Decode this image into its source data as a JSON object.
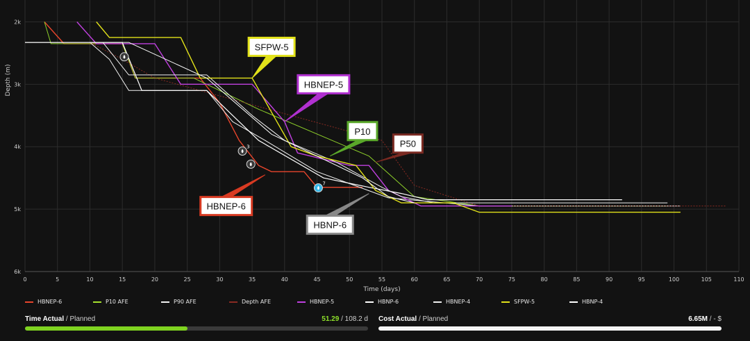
{
  "chart_data": {
    "type": "line",
    "xlabel": "Time (days)",
    "ylabel": "Depth (m)",
    "xlim": [
      0,
      110
    ],
    "ylim": [
      2000,
      6000
    ],
    "xticks": [
      0,
      5,
      10,
      15,
      20,
      25,
      30,
      35,
      40,
      45,
      50,
      55,
      60,
      65,
      70,
      75,
      80,
      85,
      90,
      95,
      100,
      105,
      110
    ],
    "yticks": [
      2000,
      3000,
      4000,
      5000,
      6000
    ],
    "ytick_labels": [
      "2k",
      "3k",
      "4k",
      "5k",
      "6k"
    ],
    "grid": true,
    "legend_position": "bottom",
    "series": [
      {
        "name": "HBNEP-6",
        "color": "#e8452c",
        "width": 1.4,
        "points": [
          [
            3,
            2000
          ],
          [
            6,
            2350
          ],
          [
            15,
            2350
          ],
          [
            17,
            2900
          ],
          [
            27,
            2900
          ],
          [
            30,
            3300
          ],
          [
            33,
            3900
          ],
          [
            36,
            4300
          ],
          [
            38,
            4400
          ],
          [
            43,
            4400
          ],
          [
            45,
            4650
          ],
          [
            52,
            4650
          ]
        ]
      },
      {
        "name": "P10 AFE",
        "color": "#8fd12a",
        "width": 1.0,
        "points": [
          [
            3,
            2000
          ],
          [
            4,
            2350
          ],
          [
            15,
            2350
          ],
          [
            17,
            2900
          ],
          [
            26,
            2900
          ],
          [
            36,
            3400
          ],
          [
            53,
            4150
          ],
          [
            60,
            4800
          ],
          [
            70,
            4950
          ],
          [
            99,
            4950
          ]
        ]
      },
      {
        "name": "P90 AFE",
        "color": "#f2f2f2",
        "width": 1.0,
        "points": [
          [
            0,
            2330
          ],
          [
            10,
            2330
          ],
          [
            13,
            2600
          ],
          [
            16,
            3100
          ],
          [
            28,
            3100
          ],
          [
            32,
            3600
          ],
          [
            37,
            3900
          ],
          [
            45,
            4400
          ],
          [
            56,
            4820
          ],
          [
            70,
            4950
          ],
          [
            101,
            4950
          ]
        ]
      },
      {
        "name": "Depth AFE",
        "color": "#8a2b22",
        "width": 1.0,
        "points": [
          [
            10,
            2330
          ],
          [
            15,
            2600
          ],
          [
            20,
            2900
          ],
          [
            55,
            3900
          ],
          [
            60,
            4620
          ],
          [
            70,
            4950
          ],
          [
            108,
            4950
          ]
        ]
      },
      {
        "name": "HBNEP-5",
        "color": "#c040e0",
        "width": 1.4,
        "points": [
          [
            8,
            2000
          ],
          [
            11,
            2350
          ],
          [
            20,
            2350
          ],
          [
            24,
            3000
          ],
          [
            35,
            3000
          ],
          [
            40,
            3600
          ],
          [
            42,
            4100
          ],
          [
            50,
            4300
          ],
          [
            53,
            4300
          ],
          [
            56,
            4700
          ],
          [
            61,
            4950
          ],
          [
            75,
            4950
          ]
        ]
      },
      {
        "name": "HBNP-6",
        "color": "#ffffff",
        "width": 1.2,
        "points": [
          [
            10,
            2330
          ],
          [
            15,
            2330
          ],
          [
            18,
            3100
          ],
          [
            28,
            3100
          ],
          [
            32,
            3500
          ],
          [
            36,
            3900
          ],
          [
            46,
            4500
          ],
          [
            53,
            4650
          ],
          [
            58,
            4750
          ],
          [
            62,
            4850
          ],
          [
            92,
            4850
          ]
        ]
      },
      {
        "name": "HBNEP-4",
        "color": "#f0f0f0",
        "width": 1.0,
        "points": [
          [
            0,
            2330
          ],
          [
            12,
            2330
          ],
          [
            16,
            2850
          ],
          [
            28,
            2850
          ],
          [
            35,
            3500
          ],
          [
            40,
            3900
          ],
          [
            48,
            4250
          ],
          [
            55,
            4650
          ],
          [
            58,
            4800
          ],
          [
            63,
            4900
          ],
          [
            99,
            4900
          ]
        ]
      },
      {
        "name": "SFPW-5",
        "color": "#e2e21a",
        "width": 1.4,
        "points": [
          [
            11,
            2000
          ],
          [
            13,
            2250
          ],
          [
            24,
            2250
          ],
          [
            27,
            2900
          ],
          [
            35,
            2900
          ],
          [
            41,
            4000
          ],
          [
            45,
            4150
          ],
          [
            51,
            4300
          ],
          [
            54,
            4700
          ],
          [
            58,
            4900
          ],
          [
            66,
            4900
          ],
          [
            70,
            5050
          ],
          [
            101,
            5050
          ]
        ]
      },
      {
        "name": "HBNP-4",
        "color": "#ffffff",
        "width": 1.0,
        "points": [
          [
            0,
            2330
          ],
          [
            16,
            2330
          ],
          [
            28,
            2900
          ],
          [
            38,
            3800
          ],
          [
            52,
            4500
          ],
          [
            56,
            4800
          ],
          [
            60,
            4900
          ]
        ]
      }
    ],
    "annotations": [
      {
        "text": "SFPW-5",
        "anchor": [
          35,
          2900
        ],
        "box": [
          38,
          2400
        ],
        "color": "#e2e21a"
      },
      {
        "text": "HBNEP-5",
        "anchor": [
          40,
          3600
        ],
        "box": [
          46,
          3000
        ],
        "color": "#b030d0"
      },
      {
        "text": "P10",
        "anchor": [
          47,
          4150
        ],
        "box": [
          52,
          3750
        ],
        "color": "#5aa82a"
      },
      {
        "text": "P50",
        "anchor": [
          54,
          4250
        ],
        "box": [
          59,
          3950
        ],
        "color": "#7a2a22"
      },
      {
        "text": "HBNEP-6",
        "anchor": [
          37,
          4450
        ],
        "box": [
          31,
          4950
        ],
        "color": "#d83a22"
      },
      {
        "text": "HBNP-6",
        "anchor": [
          53,
          4750
        ],
        "box": [
          47,
          5250
        ],
        "color": "#888888"
      }
    ],
    "markers": [
      {
        "x": 15.3,
        "y": 2560,
        "label": ""
      },
      {
        "x": 33.5,
        "y": 4070,
        "label": "3"
      },
      {
        "x": 34.8,
        "y": 4280,
        "label": ""
      },
      {
        "x": 45.2,
        "y": 4660,
        "label": "7",
        "highlight": true
      }
    ]
  },
  "legend": [
    {
      "name": "HBNEP-6",
      "color": "#e8452c"
    },
    {
      "name": "P10 AFE",
      "color": "#a6e22e"
    },
    {
      "name": "P90 AFE",
      "color": "#f2f2f2"
    },
    {
      "name": "Depth AFE",
      "color": "#8a2b22"
    },
    {
      "name": "HBNEP-5",
      "color": "#c040e0"
    },
    {
      "name": "HBNP-6",
      "color": "#ffffff"
    },
    {
      "name": "HBNEP-4",
      "color": "#f0f0f0"
    },
    {
      "name": "SFPW-5",
      "color": "#e2e21a"
    },
    {
      "name": "HBNP-4",
      "color": "#ffffff"
    }
  ],
  "progress": {
    "time": {
      "label_bold": "Time Actual",
      "label_rest": " / Planned",
      "actual": "51.29",
      "planned": " / 108.2 d",
      "fraction": 0.474,
      "color": "#7fd320"
    },
    "cost": {
      "label_bold": "Cost Actual",
      "label_rest": " / Planned",
      "actual": "6.65M",
      "planned": " / - $",
      "fraction": 1.0,
      "color": "#f5f5f5"
    }
  }
}
